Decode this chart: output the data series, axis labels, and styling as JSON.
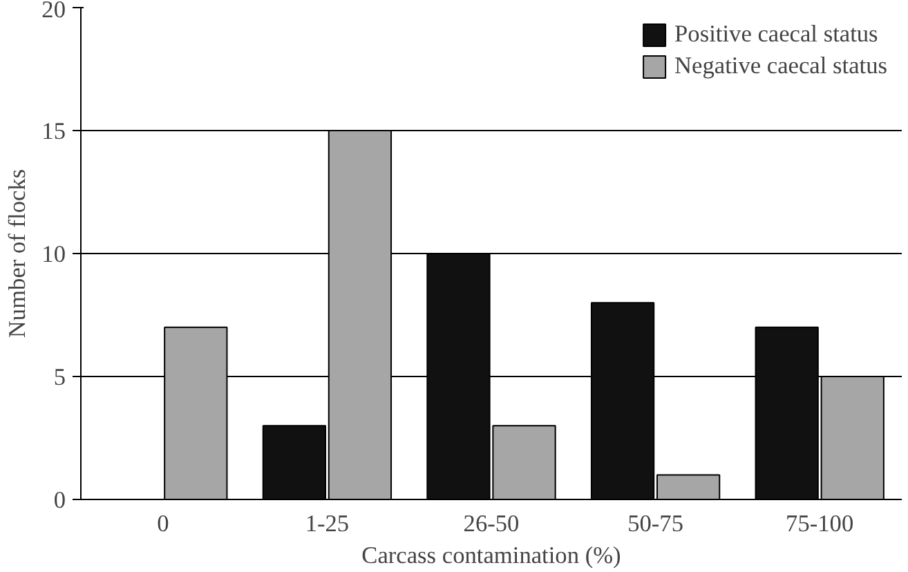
{
  "chart_data": {
    "type": "bar",
    "xlabel": "Carcass contamination (%)",
    "ylabel": "Number of flocks",
    "categories": [
      "0",
      "1-25",
      "26-50",
      "50-75",
      "75-100"
    ],
    "series": [
      {
        "name": "Positive caecal status",
        "color": "#111111",
        "values": [
          null,
          3,
          10,
          8,
          7
        ]
      },
      {
        "name": "Negative caecal status",
        "color": "#a6a6a6",
        "values": [
          7,
          15,
          3,
          1,
          5
        ]
      }
    ],
    "ylim": [
      0,
      20
    ],
    "yticks": [
      0,
      5,
      10,
      15,
      20
    ],
    "grid": "y",
    "legend": "top right"
  }
}
